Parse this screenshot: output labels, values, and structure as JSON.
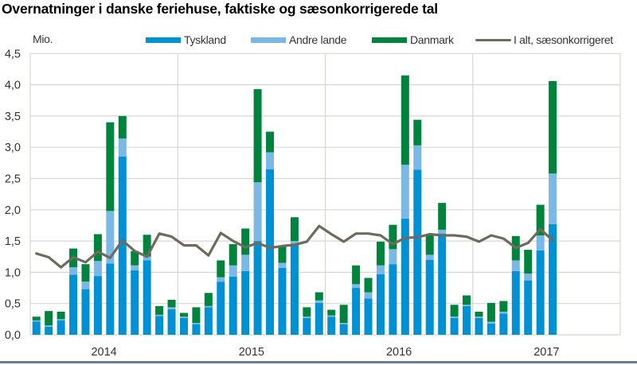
{
  "title": "Overnatninger i danske feriehuse, faktiske og sæsonkorrigerede tal",
  "unit_label": "Mio.",
  "legend": [
    {
      "label": "Tyskland",
      "kind": "bar",
      "color": "#0090d4"
    },
    {
      "label": "Andre lande",
      "kind": "bar",
      "color": "#7ab8e6"
    },
    {
      "label": "Danmark",
      "kind": "bar",
      "color": "#00843d"
    },
    {
      "label": "I alt, sæsonkorrigeret",
      "kind": "line",
      "color": "#6e6b5e"
    }
  ],
  "chart_data": {
    "type": "bar",
    "subtype": "stacked bar with line overlay",
    "title": "Overnatninger i danske feriehuse, faktiske og sæsonkorrigerede tal",
    "xlabel": "",
    "ylabel": "Mio.",
    "ylim": [
      0,
      4.5
    ],
    "y_ticks": [
      "0,0",
      "0,5",
      "1,0",
      "1,5",
      "2,0",
      "2,5",
      "3,0",
      "3,5",
      "4,0",
      "4,5"
    ],
    "y_tick_values": [
      0,
      0.5,
      1.0,
      1.5,
      2.0,
      2.5,
      3.0,
      3.5,
      4.0,
      4.5
    ],
    "x_tick_labels": [
      "2014",
      "2015",
      "2016",
      "2017"
    ],
    "grid": true,
    "legend_position": "top",
    "x_range_months": 48,
    "categories": [
      "2014-01",
      "2014-02",
      "2014-03",
      "2014-04",
      "2014-05",
      "2014-06",
      "2014-07",
      "2014-08",
      "2014-09",
      "2014-10",
      "2014-11",
      "2014-12",
      "2015-01",
      "2015-02",
      "2015-03",
      "2015-04",
      "2015-05",
      "2015-06",
      "2015-07",
      "2015-08",
      "2015-09",
      "2015-10",
      "2015-11",
      "2015-12",
      "2016-01",
      "2016-02",
      "2016-03",
      "2016-04",
      "2016-05",
      "2016-06",
      "2016-07",
      "2016-08",
      "2016-09",
      "2016-10",
      "2016-11",
      "2016-12",
      "2017-01",
      "2017-02",
      "2017-03",
      "2017-04",
      "2017-05",
      "2017-06",
      "2017-07"
    ],
    "series": [
      {
        "name": "Tyskland",
        "type": "bar",
        "stack": "total",
        "color": "#0090d4",
        "values": [
          0.21,
          0.13,
          0.23,
          0.96,
          0.73,
          0.94,
          1.14,
          2.85,
          1.03,
          1.19,
          0.3,
          0.41,
          0.27,
          0.17,
          0.44,
          0.85,
          0.93,
          1.02,
          1.5,
          2.65,
          1.07,
          1.46,
          0.27,
          0.51,
          0.29,
          0.17,
          0.75,
          0.58,
          0.97,
          1.13,
          1.86,
          2.64,
          1.2,
          1.62,
          0.27,
          0.46,
          0.27,
          0.18,
          0.34,
          1.02,
          0.87,
          1.35,
          1.77
        ]
      },
      {
        "name": "Andre lande",
        "type": "bar",
        "stack": "total",
        "color": "#7ab8e6",
        "values": [
          0.02,
          0.02,
          0.02,
          0.12,
          0.12,
          0.24,
          0.84,
          0.29,
          0.08,
          0.06,
          0.02,
          0.03,
          0.02,
          0.02,
          0.02,
          0.07,
          0.18,
          0.26,
          0.94,
          0.27,
          0.08,
          0.04,
          0.02,
          0.04,
          0.02,
          0.02,
          0.06,
          0.1,
          0.14,
          0.24,
          0.86,
          0.39,
          0.08,
          0.06,
          0.02,
          0.02,
          0.02,
          0.03,
          0.03,
          0.17,
          0.11,
          0.24,
          0.81
        ]
      },
      {
        "name": "Danmark",
        "type": "bar",
        "stack": "total",
        "color": "#00843d",
        "values": [
          0.06,
          0.23,
          0.12,
          0.3,
          0.28,
          0.43,
          1.42,
          0.36,
          0.23,
          0.35,
          0.14,
          0.12,
          0.06,
          0.25,
          0.21,
          0.27,
          0.34,
          0.42,
          1.49,
          0.33,
          0.27,
          0.38,
          0.15,
          0.13,
          0.09,
          0.29,
          0.3,
          0.23,
          0.38,
          0.39,
          1.43,
          0.41,
          0.32,
          0.43,
          0.19,
          0.15,
          0.08,
          0.3,
          0.17,
          0.39,
          0.38,
          0.49,
          1.48
        ]
      },
      {
        "name": "I alt, sæsonkorrigeret",
        "type": "line",
        "color": "#6e6b5e",
        "values": [
          1.3,
          1.24,
          1.08,
          1.24,
          1.16,
          1.33,
          1.23,
          1.51,
          1.34,
          1.25,
          1.62,
          1.57,
          1.43,
          1.43,
          1.27,
          1.63,
          1.5,
          1.4,
          1.47,
          1.39,
          1.42,
          1.44,
          1.49,
          1.74,
          1.61,
          1.49,
          1.62,
          1.62,
          1.59,
          1.45,
          1.55,
          1.56,
          1.61,
          1.59,
          1.59,
          1.57,
          1.49,
          1.59,
          1.54,
          1.39,
          1.47,
          1.69,
          1.51
        ]
      }
    ]
  }
}
